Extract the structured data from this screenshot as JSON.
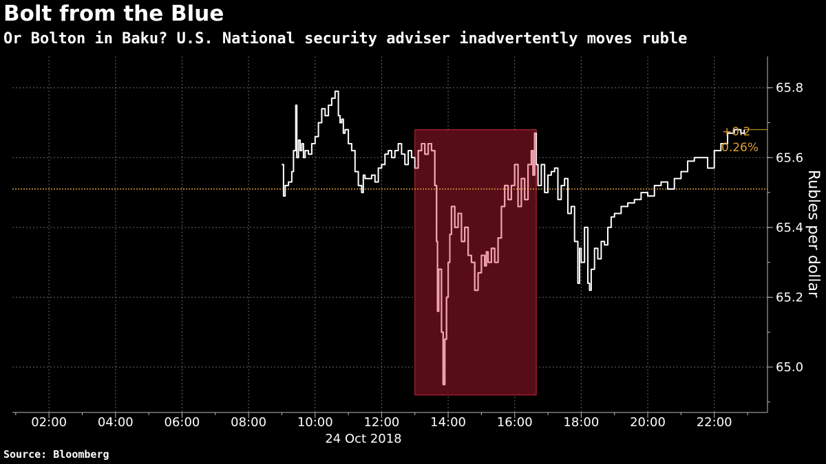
{
  "title": "Bolt from the Blue",
  "subtitle": "Or Bolton in Baku? U.S. National security adviser inadvertently moves ruble",
  "source": "Source: Bloomberg",
  "chart_data": {
    "type": "line",
    "xlabel": "24 Oct 2018",
    "ylabel": "Rubles per dollar",
    "x_ticks": [
      "02:00",
      "04:00",
      "06:00",
      "08:00",
      "10:00",
      "12:00",
      "14:00",
      "16:00",
      "18:00",
      "20:00",
      "22:00"
    ],
    "x_tick_hours": [
      2,
      4,
      6,
      8,
      10,
      12,
      14,
      16,
      18,
      20,
      22
    ],
    "y_ticks": [
      "65.0",
      "65.2",
      "65.4",
      "65.6",
      "65.8"
    ],
    "y_tick_values": [
      65.0,
      65.2,
      65.4,
      65.6,
      65.8
    ],
    "xlim_hours": [
      0.9,
      23.6
    ],
    "ylim": [
      64.87,
      65.89
    ],
    "grid": true,
    "reference_line": {
      "value": 65.51,
      "color": "#e0a030"
    },
    "change_annotation": {
      "value": "+0.2",
      "percent": "0.26%",
      "color": "#e0a030"
    },
    "highlight_region": {
      "x_start": 13.0,
      "x_end": 16.65,
      "y_low": 64.92,
      "y_high": 65.68,
      "fill": "#5c0e18",
      "edge": "#c8283a"
    },
    "series": [
      {
        "line_color": "#ffffff",
        "highlight_color": "#f5a0ae",
        "x": [
          9.0,
          9.05,
          9.1,
          9.2,
          9.3,
          9.35,
          9.42,
          9.45,
          9.5,
          9.55,
          9.6,
          9.65,
          9.7,
          9.8,
          9.9,
          10.0,
          10.1,
          10.2,
          10.3,
          10.4,
          10.5,
          10.6,
          10.7,
          10.75,
          10.8,
          10.85,
          10.9,
          11.0,
          11.1,
          11.2,
          11.3,
          11.4,
          11.45,
          11.5,
          11.6,
          11.7,
          11.8,
          11.9,
          12.0,
          12.1,
          12.2,
          12.3,
          12.4,
          12.5,
          12.6,
          12.7,
          12.8,
          12.9,
          13.0,
          13.1,
          13.2,
          13.3,
          13.4,
          13.5,
          13.6,
          13.65,
          13.68,
          13.72,
          13.8,
          13.85,
          13.9,
          13.95,
          14.0,
          14.05,
          14.1,
          14.2,
          14.3,
          14.4,
          14.5,
          14.6,
          14.7,
          14.8,
          14.9,
          15.0,
          15.1,
          15.15,
          15.2,
          15.3,
          15.4,
          15.5,
          15.6,
          15.7,
          15.8,
          15.9,
          16.0,
          16.1,
          16.2,
          16.3,
          16.4,
          16.5,
          16.55,
          16.6,
          16.65,
          16.7,
          16.8,
          16.9,
          17.0,
          17.1,
          17.2,
          17.3,
          17.4,
          17.5,
          17.6,
          17.7,
          17.8,
          17.9,
          17.95,
          18.0,
          18.1,
          18.2,
          18.25,
          18.3,
          18.4,
          18.5,
          18.6,
          18.7,
          18.8,
          18.9,
          19.0,
          19.2,
          19.4,
          19.6,
          19.8,
          20.0,
          20.2,
          20.4,
          20.6,
          20.8,
          21.0,
          21.2,
          21.4,
          21.6,
          21.8,
          22.0,
          22.2,
          22.4,
          22.6,
          22.8,
          22.9
        ],
        "y": [
          65.58,
          65.49,
          65.52,
          65.53,
          65.56,
          65.62,
          65.75,
          65.6,
          65.65,
          65.62,
          65.64,
          65.6,
          65.62,
          65.61,
          65.64,
          65.66,
          65.7,
          65.74,
          65.72,
          65.75,
          65.77,
          65.79,
          65.72,
          65.7,
          65.71,
          65.67,
          65.68,
          65.64,
          65.62,
          65.56,
          65.52,
          65.5,
          65.55,
          65.54,
          65.54,
          65.55,
          65.53,
          65.57,
          65.58,
          65.61,
          65.62,
          65.6,
          65.62,
          65.64,
          65.61,
          65.58,
          65.62,
          65.6,
          65.57,
          65.62,
          65.64,
          65.61,
          65.64,
          65.62,
          65.52,
          65.36,
          65.16,
          65.28,
          65.1,
          64.95,
          65.08,
          65.2,
          65.3,
          65.38,
          65.46,
          65.4,
          65.44,
          65.36,
          65.4,
          65.32,
          65.3,
          65.22,
          65.27,
          65.32,
          65.29,
          65.33,
          65.3,
          65.34,
          65.3,
          65.37,
          65.46,
          65.52,
          65.48,
          65.52,
          65.58,
          65.46,
          65.54,
          65.48,
          65.58,
          65.62,
          65.55,
          65.67,
          65.58,
          65.52,
          65.58,
          65.5,
          65.55,
          65.56,
          65.57,
          65.48,
          65.52,
          65.54,
          65.44,
          65.46,
          65.36,
          65.24,
          65.34,
          65.3,
          65.4,
          65.24,
          65.22,
          65.28,
          65.34,
          65.31,
          65.36,
          65.35,
          65.4,
          65.43,
          65.44,
          65.46,
          65.47,
          65.48,
          65.5,
          65.49,
          65.52,
          65.53,
          65.51,
          65.54,
          65.56,
          65.59,
          65.6,
          65.6,
          65.57,
          65.62,
          65.64,
          65.67,
          65.68,
          65.67,
          65.68
        ]
      }
    ]
  }
}
